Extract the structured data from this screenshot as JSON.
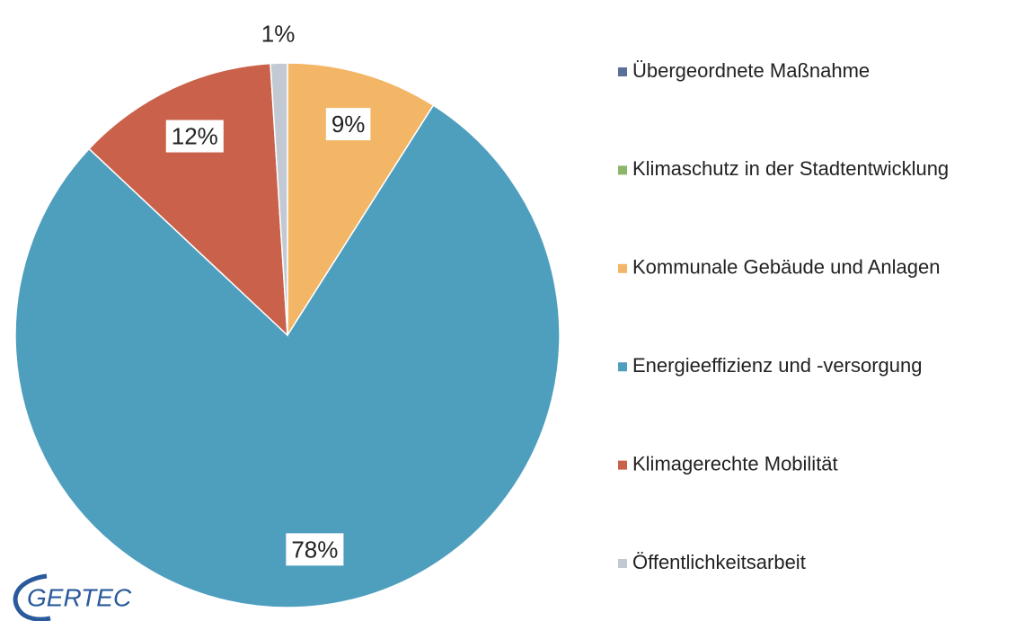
{
  "chart_data": {
    "type": "pie",
    "categories": [
      "Übergeordnete Maßnahme",
      "Klimaschutz in der Stadtentwicklung",
      "Kommunale Gebäude und Anlagen",
      "Energieeffizienz und -versorgung",
      "Klimagerechte Mobilität",
      "Öffentlichkeitsarbeit"
    ],
    "values": [
      0,
      0,
      9,
      78,
      12,
      1
    ],
    "value_labels": [
      null,
      null,
      "9%",
      "78%",
      "12%",
      "1%"
    ],
    "colors": [
      "#5b6f98",
      "#8db56a",
      "#f2b666",
      "#4e9ebe",
      "#c9614b",
      "#c3c9d3"
    ],
    "legend": "right"
  },
  "logo": "GERTEC"
}
